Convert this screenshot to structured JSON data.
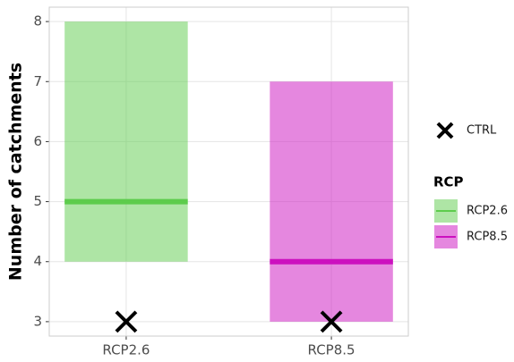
{
  "chart_data": {
    "type": "range-box",
    "y_label": "Number of catchments",
    "categories": [
      "RCP2.6",
      "RCP8.5"
    ],
    "low": [
      4,
      3
    ],
    "high": [
      8,
      7
    ],
    "median": [
      5,
      4
    ],
    "colors": [
      "#5dcc4c",
      "#cc10bf"
    ],
    "ctrl": {
      "name": "CTRL",
      "values": [
        3,
        3
      ],
      "color": "#000000"
    },
    "legend_title": "RCP",
    "ylim": [
      2.76,
      8.24
    ],
    "yticks": [
      3,
      4,
      5,
      6,
      7,
      8
    ],
    "grid": true
  }
}
